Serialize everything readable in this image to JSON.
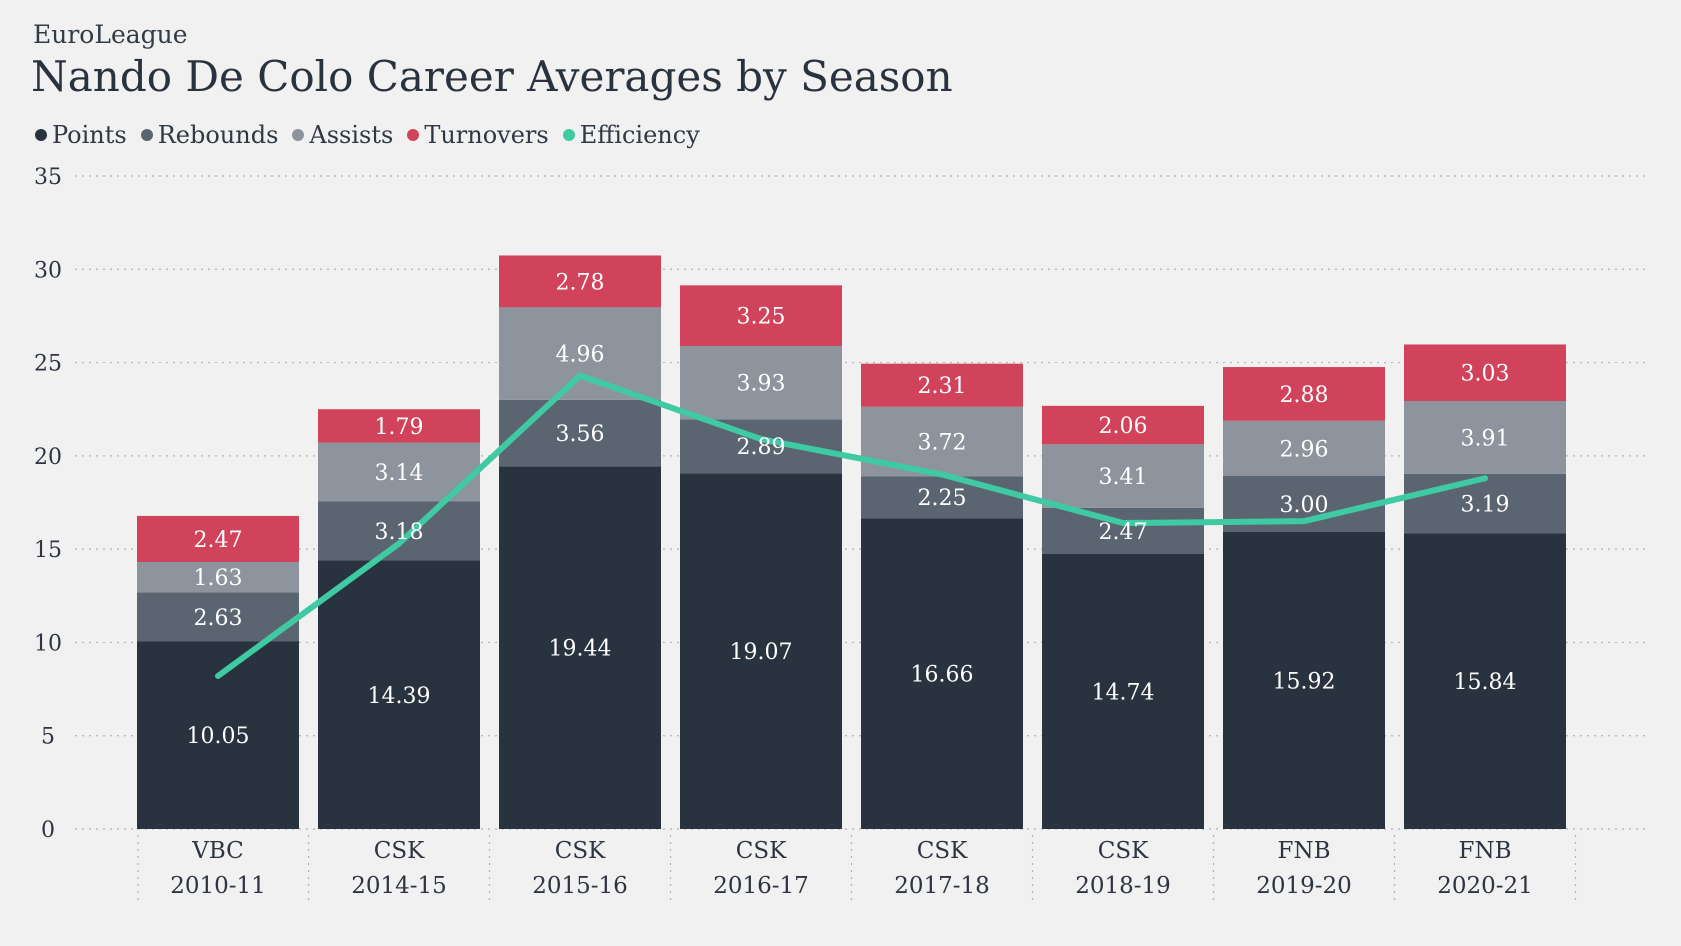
{
  "header": {
    "subtitle": "EuroLeague",
    "title": "Nando De Colo Career Averages by Season"
  },
  "chart_data": {
    "type": "bar",
    "stacked": true,
    "title": "Nando De Colo Career Averages by Season",
    "subtitle": "EuroLeague",
    "categories": [
      [
        "VBC",
        "2010-11"
      ],
      [
        "CSK",
        "2014-15"
      ],
      [
        "CSK",
        "2015-16"
      ],
      [
        "CSK",
        "2016-17"
      ],
      [
        "CSK",
        "2017-18"
      ],
      [
        "CSK",
        "2018-19"
      ],
      [
        "FNB",
        "2019-20"
      ],
      [
        "FNB",
        "2020-21"
      ]
    ],
    "series": [
      {
        "name": "Points",
        "color": "#29333f",
        "values": [
          10.05,
          14.39,
          19.44,
          19.07,
          16.66,
          14.74,
          15.92,
          15.84
        ]
      },
      {
        "name": "Rebounds",
        "color": "#5b6571",
        "values": [
          2.63,
          3.18,
          3.56,
          2.89,
          2.25,
          2.47,
          3.0,
          3.19
        ]
      },
      {
        "name": "Assists",
        "color": "#8d949d",
        "values": [
          1.63,
          3.14,
          4.96,
          3.93,
          3.72,
          3.41,
          2.96,
          3.91
        ]
      },
      {
        "name": "Turnovers",
        "color": "#d1435b",
        "values": [
          2.47,
          1.79,
          2.78,
          3.25,
          2.31,
          2.06,
          2.88,
          3.03
        ]
      }
    ],
    "line_series": [
      {
        "name": "Efficiency",
        "color": "#3fcaa4",
        "values": [
          8.2,
          15.3,
          24.3,
          20.9,
          19.0,
          16.4,
          16.5,
          18.8
        ]
      }
    ],
    "value_labels": [
      [
        "10.05",
        "2.63",
        "1.63",
        "2.47"
      ],
      [
        "14.39",
        "3.18",
        "3.14",
        "1.79"
      ],
      [
        "19.44",
        "3.56",
        "4.96",
        "2.78"
      ],
      [
        "19.07",
        "2.89",
        "3.93",
        "3.25"
      ],
      [
        "16.66",
        "2.25",
        "3.72",
        "2.31"
      ],
      [
        "14.74",
        "2.47",
        "3.41",
        "2.06"
      ],
      [
        "15.92",
        "3.00",
        "2.96",
        "2.88"
      ],
      [
        "15.84",
        "3.19",
        "3.91",
        "3.03"
      ]
    ],
    "y_ticks": [
      "0",
      "5",
      "10",
      "15",
      "20",
      "25",
      "30",
      "35"
    ],
    "ylim": [
      0,
      35
    ],
    "grid": true,
    "legend_position": "top-left",
    "xlabel": "",
    "ylabel": ""
  }
}
